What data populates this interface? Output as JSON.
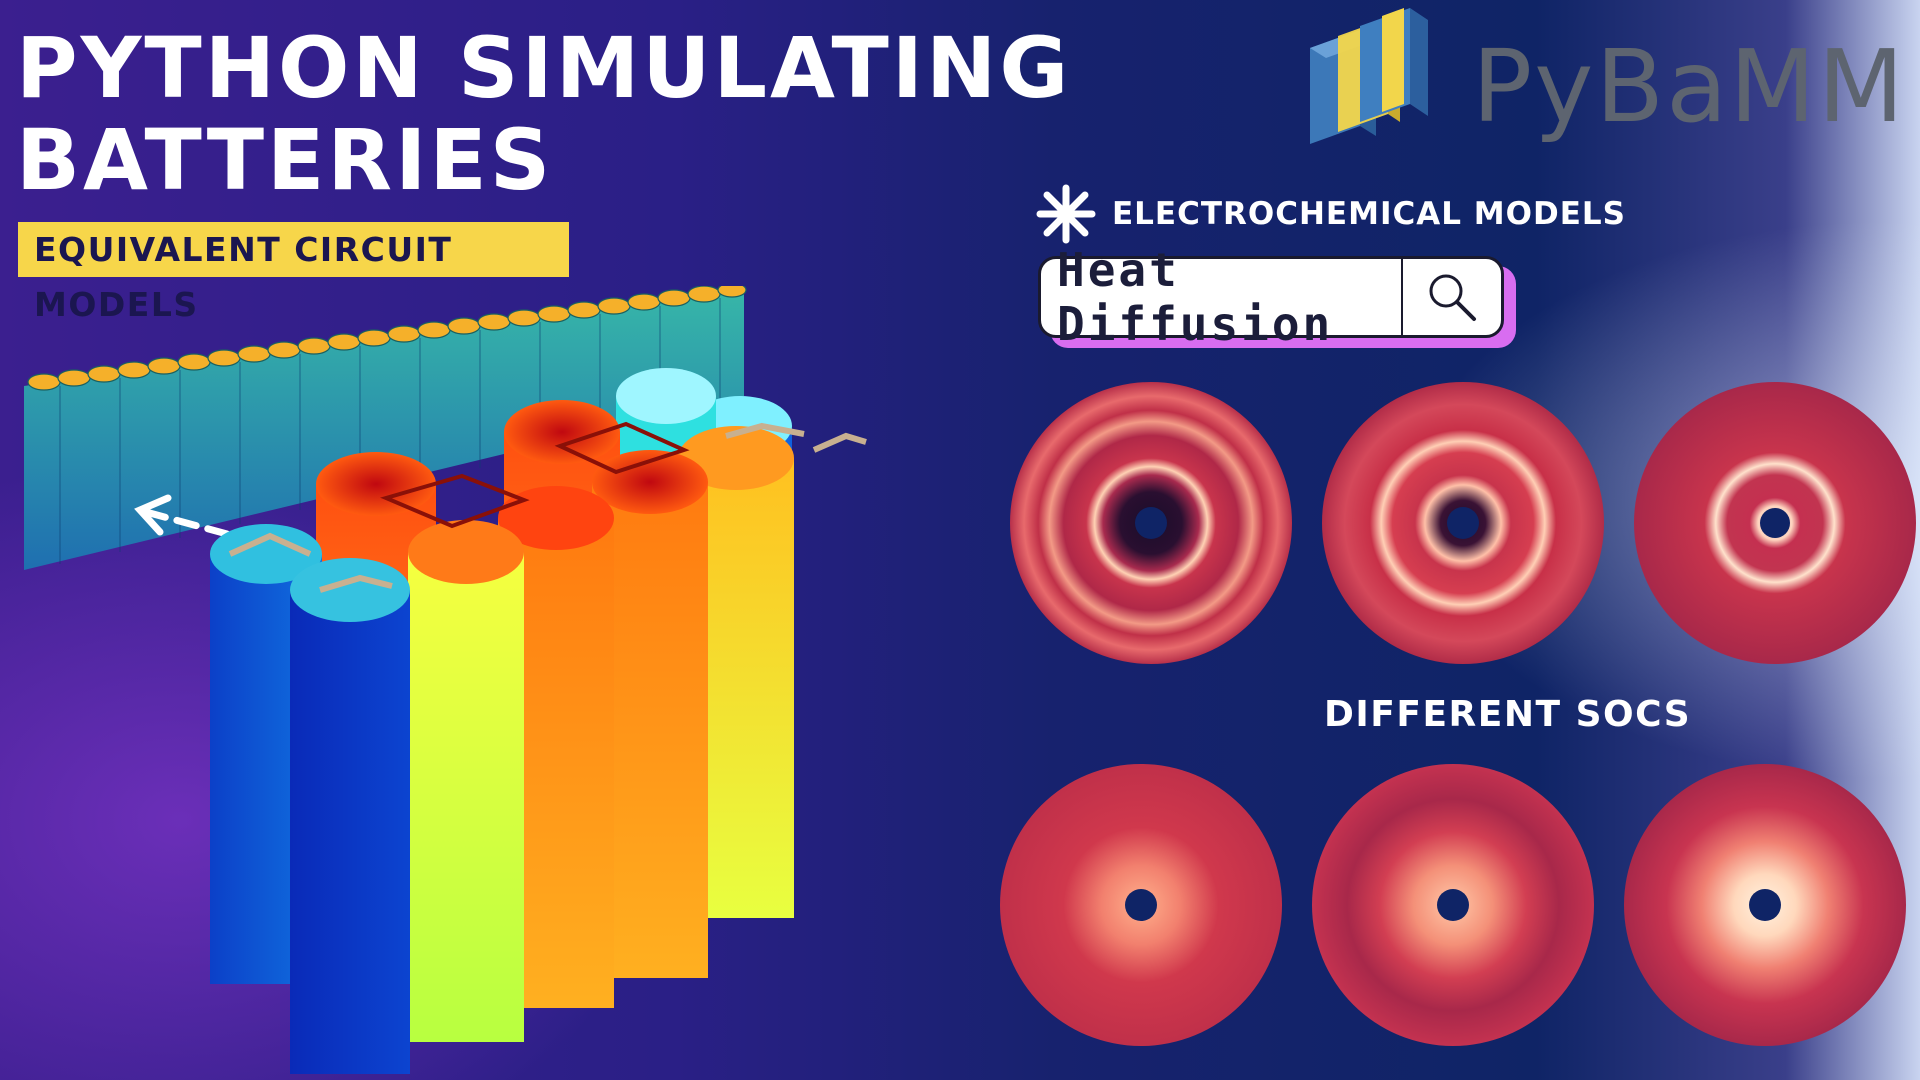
{
  "title": {
    "line1": "PYTHON SIMULATING",
    "line2": "BATTERIES"
  },
  "tag": "EQUIVALENT CIRCUIT MODELS",
  "logo": {
    "text": "PyBaMM",
    "icon": "pybamm-logo-icon"
  },
  "electrochemical": {
    "label": "ELECTROCHEMICAL MODELS",
    "icon": "asterisk-icon"
  },
  "search": {
    "value": "Heat Diffusion",
    "icon": "search-icon"
  },
  "caption": "DIFFERENT SOCS",
  "colors": {
    "tag_bg": "#f7d64a",
    "search_shadow": "#d86df0",
    "heat_hot": "#ffe8c0",
    "heat_mid": "#d8384c",
    "heat_cold": "#1a0c2a"
  }
}
